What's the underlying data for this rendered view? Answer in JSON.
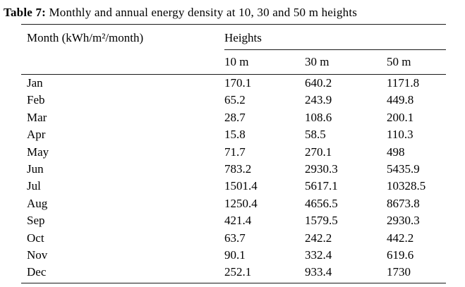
{
  "caption": {
    "label": "Table 7:",
    "text": " Monthly and annual energy density at 10, 30 and 50 m heights"
  },
  "table": {
    "col1_header": "Month (kWh/m²/month)",
    "group_header": "Heights",
    "sub_headers": [
      "10 m",
      "30 m",
      "50 m"
    ],
    "rows": [
      {
        "month": "Jan",
        "values": [
          "170.1",
          "640.2",
          "1171.8"
        ]
      },
      {
        "month": "Feb",
        "values": [
          "65.2",
          "243.9",
          "449.8"
        ]
      },
      {
        "month": "Mar",
        "values": [
          "28.7",
          "108.6",
          "200.1"
        ]
      },
      {
        "month": "Apr",
        "values": [
          "15.8",
          "58.5",
          "110.3"
        ]
      },
      {
        "month": "May",
        "values": [
          "71.7",
          "270.1",
          "498"
        ]
      },
      {
        "month": "Jun",
        "values": [
          "783.2",
          "2930.3",
          "5435.9"
        ]
      },
      {
        "month": "Jul",
        "values": [
          "1501.4",
          "5617.1",
          "10328.5"
        ]
      },
      {
        "month": "Aug",
        "values": [
          "1250.4",
          "4656.5",
          "8673.8"
        ]
      },
      {
        "month": "Sep",
        "values": [
          "421.4",
          "1579.5",
          "2930.3"
        ]
      },
      {
        "month": "Oct",
        "values": [
          "63.7",
          "242.2",
          "442.2"
        ]
      },
      {
        "month": "Nov",
        "values": [
          "90.1",
          "332.4",
          "619.6"
        ]
      },
      {
        "month": "Dec",
        "values": [
          "252.1",
          "933.4",
          "1730"
        ]
      }
    ]
  },
  "chart_data": {
    "type": "table",
    "title": "Table 7: Monthly and annual energy density at 10, 30 and 50 m heights",
    "categories": [
      "Jan",
      "Feb",
      "Mar",
      "Apr",
      "May",
      "Jun",
      "Jul",
      "Aug",
      "Sep",
      "Oct",
      "Nov",
      "Dec"
    ],
    "unit": "kWh/m²/month",
    "series": [
      {
        "name": "10 m",
        "values": [
          170.1,
          65.2,
          28.7,
          15.8,
          71.7,
          783.2,
          1501.4,
          1250.4,
          421.4,
          63.7,
          90.1,
          252.1
        ]
      },
      {
        "name": "30 m",
        "values": [
          640.2,
          243.9,
          108.6,
          58.5,
          270.1,
          2930.3,
          5617.1,
          4656.5,
          1579.5,
          242.2,
          332.4,
          933.4
        ]
      },
      {
        "name": "50 m",
        "values": [
          1171.8,
          449.8,
          200.1,
          110.3,
          498,
          5435.9,
          10328.5,
          8673.8,
          2930.3,
          442.2,
          619.6,
          1730
        ]
      }
    ]
  }
}
